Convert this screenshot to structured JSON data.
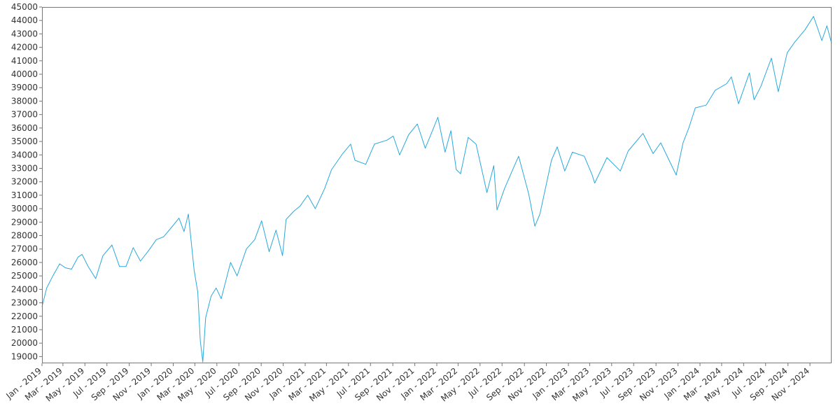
{
  "chart_data": {
    "type": "line",
    "title": "",
    "xlabel": "",
    "ylabel": "",
    "xlim": [
      "2019-01-02",
      "2024-12-31"
    ],
    "ylim": [
      18500,
      45000
    ],
    "y_ticks": [
      19000,
      20000,
      21000,
      22000,
      23000,
      24000,
      25000,
      26000,
      27000,
      28000,
      29000,
      30000,
      31000,
      32000,
      33000,
      34000,
      35000,
      36000,
      37000,
      38000,
      39000,
      40000,
      41000,
      42000,
      43000,
      44000,
      45000
    ],
    "x_ticks": [
      {
        "date": "2019-01-01",
        "label": "Jan - 2019"
      },
      {
        "date": "2019-03-01",
        "label": "Mar - 2019"
      },
      {
        "date": "2019-05-01",
        "label": "May - 2019"
      },
      {
        "date": "2019-07-01",
        "label": "Jul - 2019"
      },
      {
        "date": "2019-09-01",
        "label": "Sep - 2019"
      },
      {
        "date": "2019-11-01",
        "label": "Nov - 2019"
      },
      {
        "date": "2020-01-01",
        "label": "Jan - 2020"
      },
      {
        "date": "2020-03-01",
        "label": "Mar - 2020"
      },
      {
        "date": "2020-05-01",
        "label": "May - 2020"
      },
      {
        "date": "2020-07-01",
        "label": "Jul - 2020"
      },
      {
        "date": "2020-09-01",
        "label": "Sep - 2020"
      },
      {
        "date": "2020-11-01",
        "label": "Nov - 2020"
      },
      {
        "date": "2021-01-01",
        "label": "Jan - 2021"
      },
      {
        "date": "2021-03-01",
        "label": "Mar - 2021"
      },
      {
        "date": "2021-05-01",
        "label": "May - 2021"
      },
      {
        "date": "2021-07-01",
        "label": "Jul - 2021"
      },
      {
        "date": "2021-09-01",
        "label": "Sep - 2021"
      },
      {
        "date": "2021-11-01",
        "label": "Nov - 2021"
      },
      {
        "date": "2022-01-01",
        "label": "Jan - 2022"
      },
      {
        "date": "2022-03-01",
        "label": "Mar - 2022"
      },
      {
        "date": "2022-05-01",
        "label": "May - 2022"
      },
      {
        "date": "2022-07-01",
        "label": "Jul - 2022"
      },
      {
        "date": "2022-09-01",
        "label": "Sep - 2022"
      },
      {
        "date": "2022-11-01",
        "label": "Nov - 2022"
      },
      {
        "date": "2023-01-01",
        "label": "Jan - 2023"
      },
      {
        "date": "2023-03-01",
        "label": "Mar - 2023"
      },
      {
        "date": "2023-05-01",
        "label": "May - 2023"
      },
      {
        "date": "2023-07-01",
        "label": "Jul - 2023"
      },
      {
        "date": "2023-09-01",
        "label": "Sep - 2023"
      },
      {
        "date": "2023-11-01",
        "label": "Nov - 2023"
      },
      {
        "date": "2024-01-01",
        "label": "Jan - 2024"
      },
      {
        "date": "2024-03-01",
        "label": "Mar - 2024"
      },
      {
        "date": "2024-05-01",
        "label": "May - 2024"
      },
      {
        "date": "2024-07-01",
        "label": "Jul - 2024"
      },
      {
        "date": "2024-09-01",
        "label": "Sep - 2024"
      },
      {
        "date": "2024-11-01",
        "label": "Nov - 2024"
      }
    ],
    "grid": false,
    "legend": "none",
    "colors": {
      "line": "#29a8dc",
      "axis": "#777777",
      "text": "#333333"
    },
    "series": [
      {
        "x": [
          "2019-01-02",
          "2019-01-15",
          "2019-02-01",
          "2019-02-20",
          "2019-03-08",
          "2019-03-25",
          "2019-04-12",
          "2019-04-23",
          "2019-05-10",
          "2019-05-31",
          "2019-06-20",
          "2019-07-15",
          "2019-08-05",
          "2019-08-23",
          "2019-09-12",
          "2019-10-02",
          "2019-10-25",
          "2019-11-15",
          "2019-12-05",
          "2019-12-27",
          "2020-01-17",
          "2020-01-31",
          "2020-02-12",
          "2020-02-28",
          "2020-03-09",
          "2020-03-16",
          "2020-03-23",
          "2020-03-31",
          "2020-04-15",
          "2020-04-29",
          "2020-05-13",
          "2020-06-08",
          "2020-06-26",
          "2020-07-22",
          "2020-08-14",
          "2020-09-02",
          "2020-09-23",
          "2020-10-12",
          "2020-10-30",
          "2020-11-09",
          "2020-11-30",
          "2020-12-18",
          "2021-01-08",
          "2021-01-29",
          "2021-02-24",
          "2021-03-15",
          "2021-04-15",
          "2021-05-07",
          "2021-05-19",
          "2021-06-18",
          "2021-07-12",
          "2021-08-16",
          "2021-09-02",
          "2021-09-20",
          "2021-10-15",
          "2021-11-08",
          "2021-11-30",
          "2021-12-20",
          "2022-01-04",
          "2022-01-24",
          "2022-02-09",
          "2022-02-24",
          "2022-03-08",
          "2022-03-29",
          "2022-04-20",
          "2022-05-20",
          "2022-06-08",
          "2022-06-17",
          "2022-07-08",
          "2022-07-29",
          "2022-08-16",
          "2022-09-13",
          "2022-09-30",
          "2022-10-14",
          "2022-11-15",
          "2022-12-01",
          "2022-12-22",
          "2023-01-12",
          "2023-02-14",
          "2023-03-08",
          "2023-03-15",
          "2023-04-18",
          "2023-05-25",
          "2023-06-16",
          "2023-07-27",
          "2023-08-24",
          "2023-09-14",
          "2023-10-27",
          "2023-11-15",
          "2023-12-01",
          "2023-12-19",
          "2024-01-18",
          "2024-02-12",
          "2024-03-15",
          "2024-03-28",
          "2024-04-17",
          "2024-05-17",
          "2024-05-30",
          "2024-06-18",
          "2024-07-17",
          "2024-08-05",
          "2024-08-30",
          "2024-09-20",
          "2024-10-18",
          "2024-11-11",
          "2024-12-04",
          "2024-12-18",
          "2024-12-31"
        ],
        "y": [
          22700,
          24100,
          25000,
          25900,
          25600,
          25500,
          26400,
          26600,
          25700,
          24800,
          26500,
          27300,
          25700,
          25700,
          27100,
          26100,
          26900,
          27700,
          27900,
          28600,
          29300,
          28300,
          29600,
          25400,
          23800,
          20200,
          18600,
          21900,
          23500,
          24100,
          23300,
          26000,
          25000,
          27000,
          27700,
          29100,
          26800,
          28400,
          26500,
          29200,
          29800,
          30200,
          31000,
          30000,
          31500,
          32900,
          34100,
          34800,
          33600,
          33300,
          34800,
          35100,
          35400,
          34000,
          35500,
          36300,
          34500,
          35800,
          36800,
          34200,
          35800,
          32900,
          32600,
          35300,
          34800,
          31200,
          33200,
          29900,
          31500,
          32800,
          33900,
          31100,
          28700,
          29600,
          33600,
          34600,
          32800,
          34200,
          33900,
          32500,
          31900,
          33800,
          32800,
          34300,
          35600,
          34100,
          34900,
          32500,
          34900,
          36000,
          37500,
          37700,
          38800,
          39300,
          39800,
          37800,
          40100,
          38100,
          39100,
          41200,
          38700,
          41600,
          42400,
          43300,
          44300,
          42500,
          43600,
          42300
        ]
      }
    ]
  }
}
